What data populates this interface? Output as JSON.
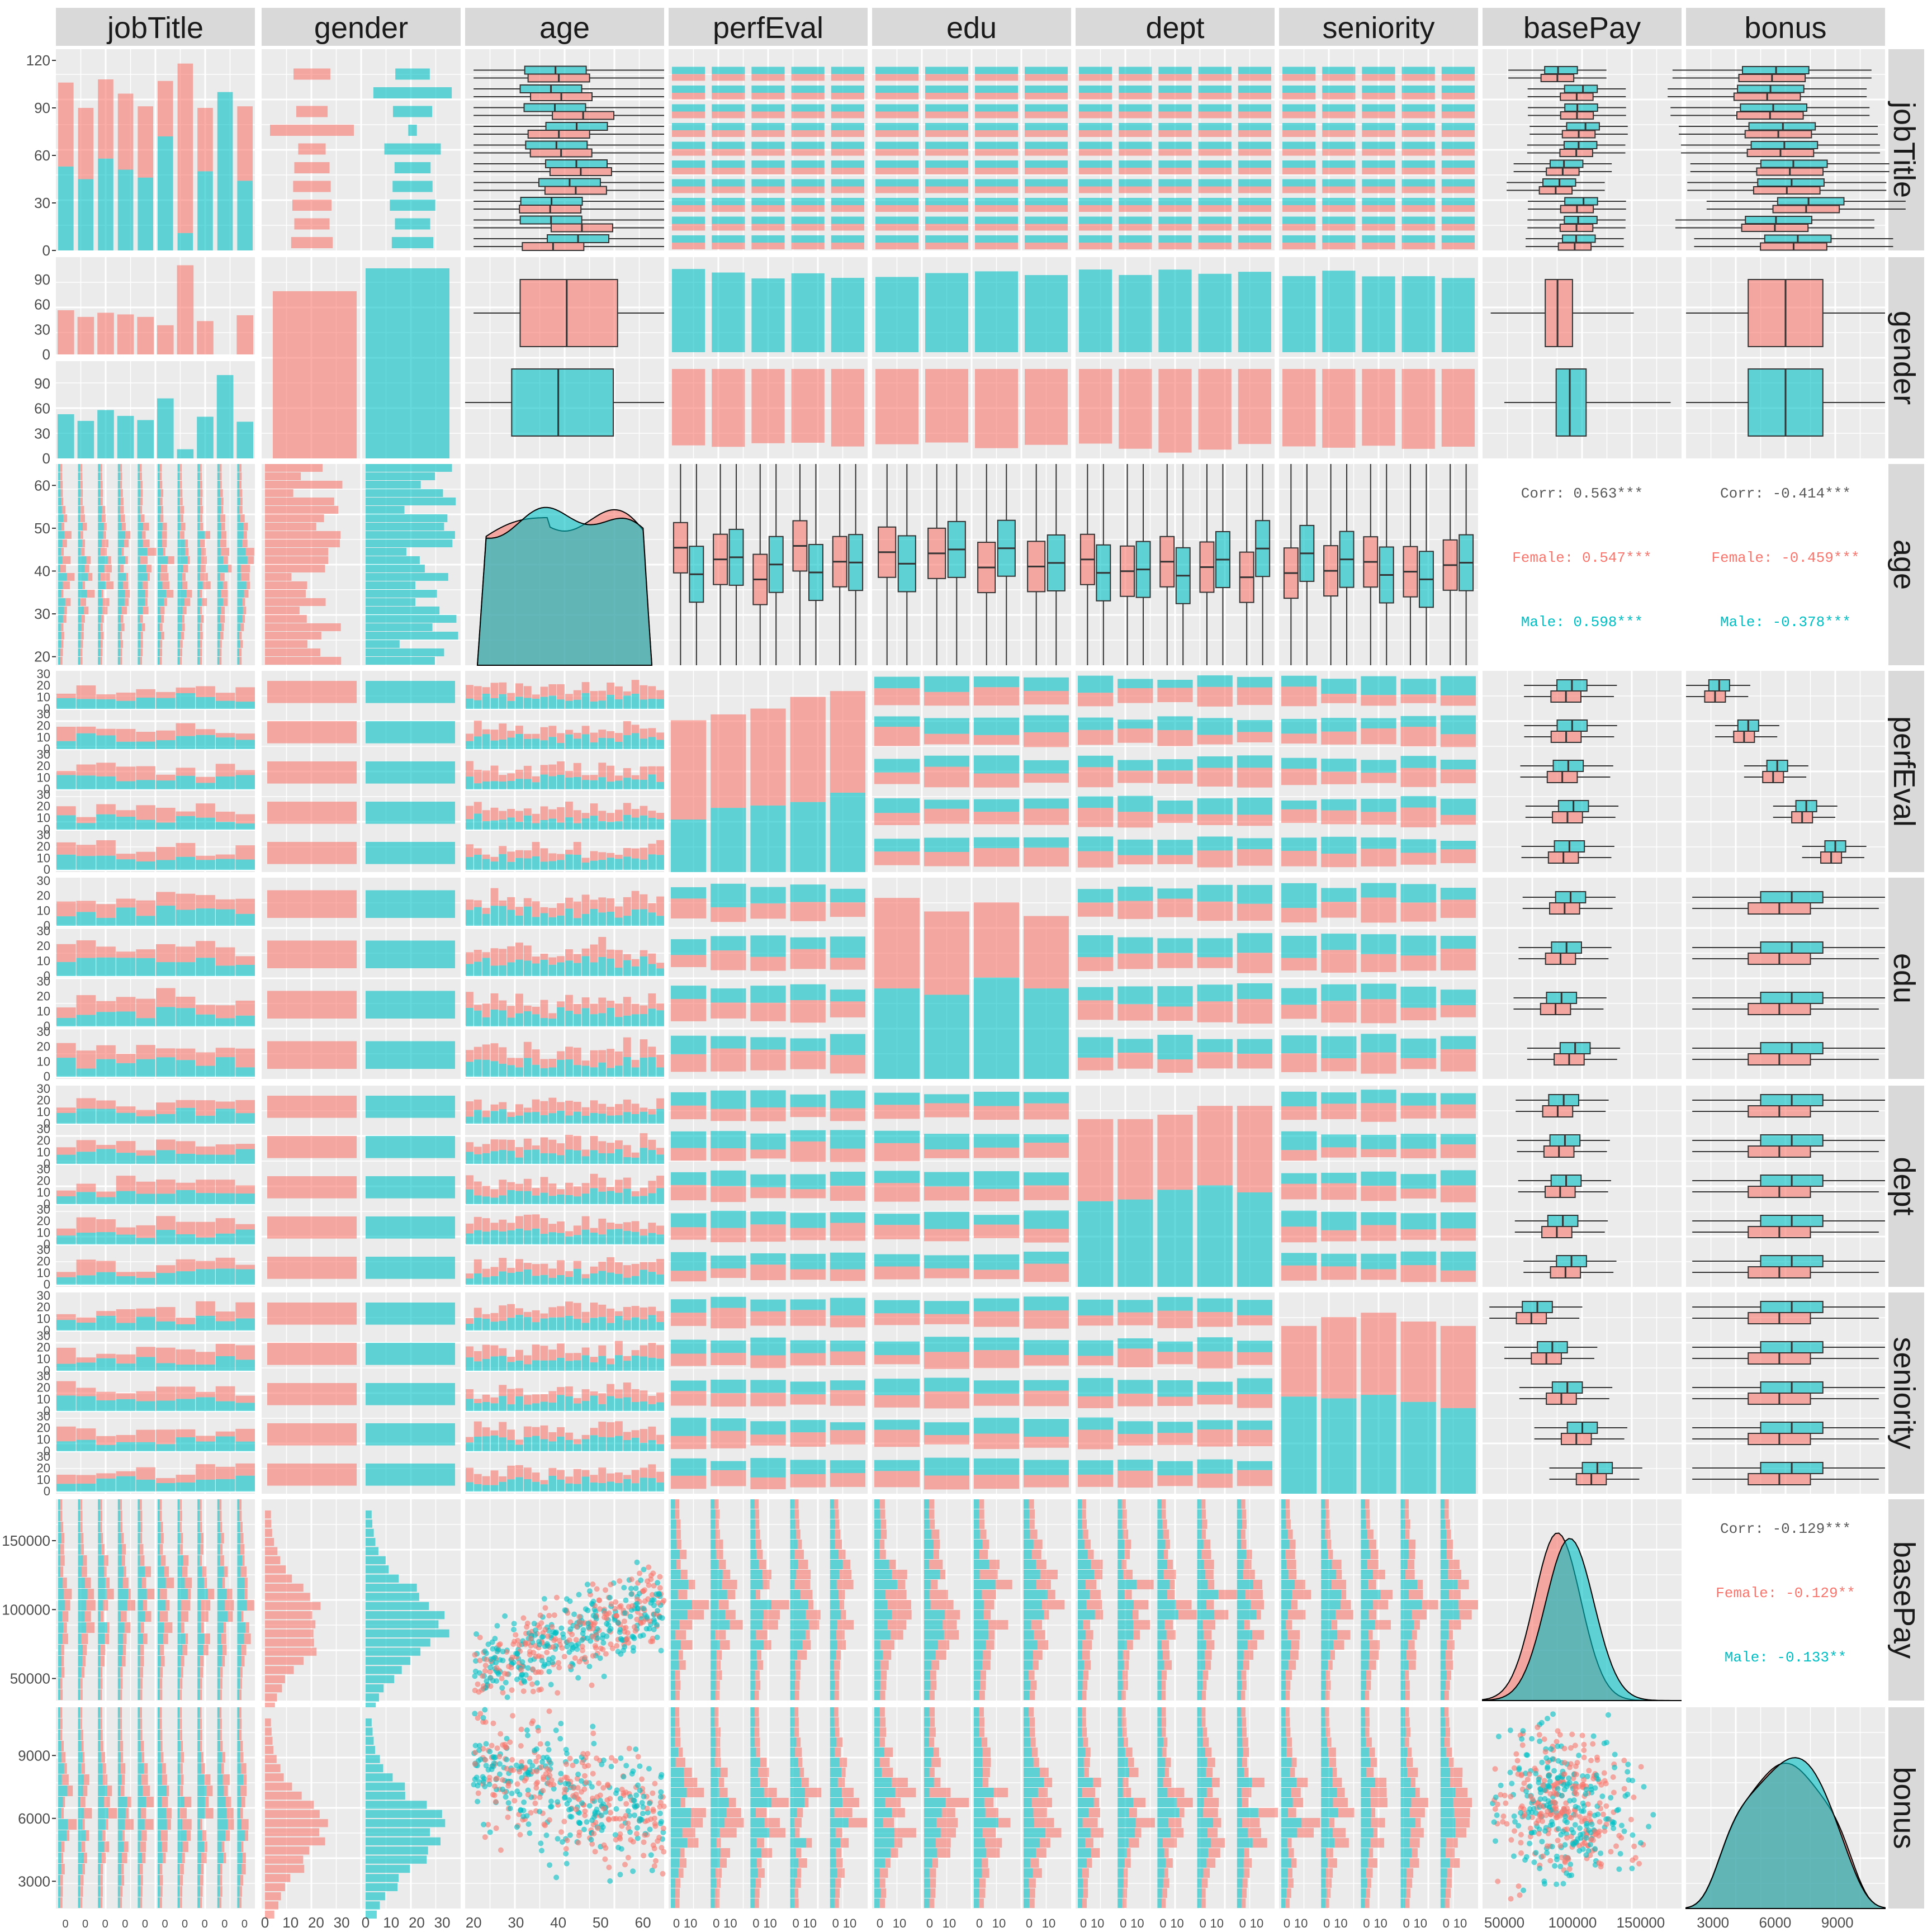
{
  "chart_data": {
    "type": "scatterplot-matrix",
    "variables": [
      "jobTitle",
      "gender",
      "age",
      "perfEval",
      "edu",
      "dept",
      "seniority",
      "basePay",
      "bonus"
    ],
    "series": [
      {
        "name": "Female",
        "color": "#F8766D"
      },
      {
        "name": "Male",
        "color": "#00BFC4"
      }
    ],
    "axis_ticks": {
      "jobTitle_count": [
        "0",
        "30",
        "60",
        "90",
        "120"
      ],
      "gender_count": [
        "0",
        "30",
        "60",
        "90"
      ],
      "age": [
        "20",
        "30",
        "40",
        "50",
        "60"
      ],
      "basePay": [
        "50000",
        "100000",
        "150000"
      ],
      "bonus": [
        "3000",
        "6000",
        "9000"
      ],
      "gender_hist_count": [
        "0",
        "10",
        "20",
        "30"
      ],
      "facet_count": [
        "0",
        "10",
        "20",
        "30"
      ]
    },
    "correlations": {
      "age_basePay": {
        "Corr": "Corr: 0.563***",
        "Female": "Female: 0.547***",
        "Male": "Male: 0.598***"
      },
      "age_bonus": {
        "Corr": "Corr: -0.414***",
        "Female": "Female: -0.459***",
        "Male": "Male: -0.378***"
      },
      "basePay_bonus": {
        "Corr": "Corr: -0.129***",
        "Female": "Female: -0.129**",
        "Male": "Male: -0.133**"
      }
    },
    "jobTitle_counts": {
      "female": [
        53,
        45,
        50,
        48,
        45,
        35,
        107,
        40,
        0,
        47
      ],
      "male": [
        53,
        45,
        58,
        51,
        46,
        72,
        11,
        50,
        100,
        44
      ]
    },
    "gender_counts": {
      "Female": 468,
      "Male": 532
    },
    "perfEval_totals": [
      130,
      135,
      140,
      150,
      155
    ],
    "perfEval_male": [
      45,
      55,
      57,
      60,
      68
    ],
    "edu_totals": [
      200,
      185,
      195,
      180
    ],
    "edu_male": [
      100,
      93,
      112,
      100
    ],
    "dept_totals": [
      190,
      190,
      195,
      205,
      205
    ],
    "dept_male": [
      97,
      99,
      110,
      115,
      107
    ],
    "seniority_totals": [
      190,
      200,
      205,
      195,
      190
    ],
    "seniority_male": [
      110,
      108,
      112,
      104,
      97
    ],
    "age_range": [
      18,
      65
    ],
    "basePay_range": [
      34000,
      180000
    ],
    "bonus_range": [
      1700,
      11300
    ]
  }
}
